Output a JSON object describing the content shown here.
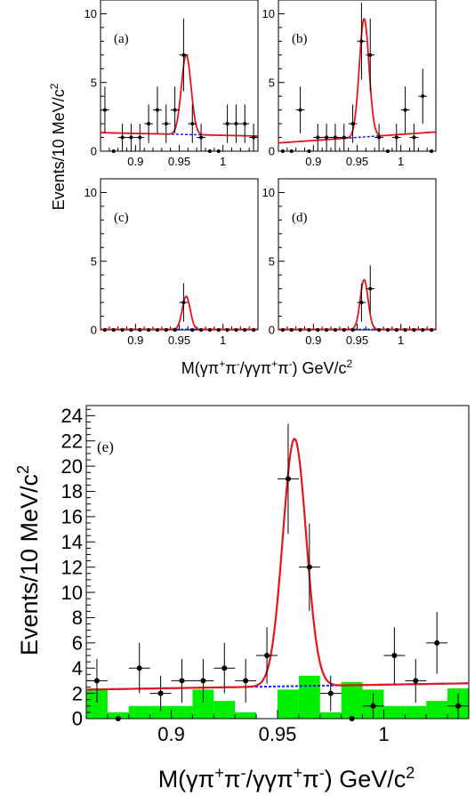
{
  "figure": {
    "top_ylabel": "Events/10 MeV/c",
    "top_ylabel_sup": "2",
    "top_xlabel_pre": "M(γπ",
    "top_xlabel_sup1": "+",
    "top_xlabel_mid1": "π",
    "top_xlabel_sup2": "-",
    "top_xlabel_mid2": "/γγπ",
    "top_xlabel_sup3": "+",
    "top_xlabel_mid3": "π",
    "top_xlabel_sup4": "-",
    "top_xlabel_post": ") GeV/c",
    "top_xlabel_sup5": "2",
    "bottom_ylabel": "Events/10 MeV/c",
    "bottom_ylabel_sup": "2",
    "bottom_xlabel_pre": "M(γπ",
    "bottom_xlabel_sup1": "+",
    "bottom_xlabel_mid1": "π",
    "bottom_xlabel_sup2": "-",
    "bottom_xlabel_mid2": "/γγπ",
    "bottom_xlabel_sup3": "+",
    "bottom_xlabel_mid3": "π",
    "bottom_xlabel_sup4": "-",
    "bottom_xlabel_post": ") GeV/c",
    "bottom_xlabel_sup5": "2"
  },
  "colors": {
    "fit": "#e8141c",
    "background": "#1a1aff",
    "histogram": "#00ee00",
    "data": "#000000"
  },
  "chart_data": [
    {
      "id": "a",
      "label": "(a)",
      "type": "scatter",
      "xlim": [
        0.86,
        1.04
      ],
      "ylim": [
        0,
        11
      ],
      "xticks": [
        0.9,
        0.95,
        1
      ],
      "xtick_labels": [
        "0.9",
        "0.95",
        "1"
      ],
      "yticks": [
        0,
        5,
        10
      ],
      "ytick_labels": [
        "0",
        "5",
        "10"
      ],
      "points": [
        {
          "x": 0.865,
          "y": 3,
          "err": 1.7
        },
        {
          "x": 0.875,
          "y": 0,
          "err": 0
        },
        {
          "x": 0.885,
          "y": 1,
          "err": 1.0
        },
        {
          "x": 0.895,
          "y": 1,
          "err": 1.0
        },
        {
          "x": 0.905,
          "y": 1,
          "err": 1.0
        },
        {
          "x": 0.915,
          "y": 2,
          "err": 1.4
        },
        {
          "x": 0.925,
          "y": 3,
          "err": 1.7
        },
        {
          "x": 0.935,
          "y": 2,
          "err": 1.4
        },
        {
          "x": 0.945,
          "y": 3,
          "err": 1.7
        },
        {
          "x": 0.955,
          "y": 7,
          "err": 2.65
        },
        {
          "x": 0.965,
          "y": 2,
          "err": 1.4
        },
        {
          "x": 0.975,
          "y": 1,
          "err": 1.0
        },
        {
          "x": 0.985,
          "y": 0,
          "err": 0
        },
        {
          "x": 0.995,
          "y": 0,
          "err": 0
        },
        {
          "x": 1.005,
          "y": 2,
          "err": 1.4
        },
        {
          "x": 1.015,
          "y": 2,
          "err": 1.4
        },
        {
          "x": 1.025,
          "y": 2,
          "err": 1.4
        },
        {
          "x": 1.035,
          "y": 1,
          "err": 1.0
        }
      ],
      "fit": {
        "peak_x": 0.958,
        "sigma": 0.0055,
        "amp": 5.8
      },
      "bkg": {
        "y0": 1.35,
        "y1": 1.1
      }
    },
    {
      "id": "b",
      "label": "(b)",
      "type": "scatter",
      "xlim": [
        0.86,
        1.04
      ],
      "ylim": [
        0,
        11
      ],
      "xticks": [
        0.9,
        0.95,
        1
      ],
      "xtick_labels": [
        "0.9",
        "0.95",
        "1"
      ],
      "yticks": [
        0,
        5,
        10
      ],
      "ytick_labels": [
        "0",
        "5",
        "10"
      ],
      "points": [
        {
          "x": 0.865,
          "y": 0,
          "err": 0
        },
        {
          "x": 0.875,
          "y": 0,
          "err": 0
        },
        {
          "x": 0.885,
          "y": 3,
          "err": 1.7
        },
        {
          "x": 0.895,
          "y": 0,
          "err": 0
        },
        {
          "x": 0.905,
          "y": 1,
          "err": 1.0
        },
        {
          "x": 0.915,
          "y": 1,
          "err": 1.0
        },
        {
          "x": 0.925,
          "y": 1,
          "err": 1.0
        },
        {
          "x": 0.935,
          "y": 1,
          "err": 1.0
        },
        {
          "x": 0.945,
          "y": 2,
          "err": 1.4
        },
        {
          "x": 0.955,
          "y": 8,
          "err": 2.8
        },
        {
          "x": 0.965,
          "y": 7,
          "err": 2.65
        },
        {
          "x": 0.975,
          "y": 1,
          "err": 1.0
        },
        {
          "x": 0.985,
          "y": 0,
          "err": 0
        },
        {
          "x": 0.995,
          "y": 1,
          "err": 1.0
        },
        {
          "x": 1.005,
          "y": 3,
          "err": 1.7
        },
        {
          "x": 1.015,
          "y": 1,
          "err": 1.0
        },
        {
          "x": 1.025,
          "y": 4,
          "err": 2.0
        },
        {
          "x": 1.035,
          "y": 0,
          "err": 0
        }
      ],
      "fit": {
        "peak_x": 0.958,
        "sigma": 0.0055,
        "amp": 8.6
      },
      "bkg": {
        "y0": 0.6,
        "y1": 1.4
      }
    },
    {
      "id": "c",
      "label": "(c)",
      "type": "scatter",
      "xlim": [
        0.86,
        1.04
      ],
      "ylim": [
        0,
        11
      ],
      "xticks": [
        0.9,
        0.95,
        1
      ],
      "xtick_labels": [
        "0.9",
        "0.95",
        "1"
      ],
      "yticks": [
        0,
        5,
        10
      ],
      "ytick_labels": [
        "0",
        "5",
        "10"
      ],
      "points": [
        {
          "x": 0.865,
          "y": 0,
          "err": 0
        },
        {
          "x": 0.875,
          "y": 0,
          "err": 0
        },
        {
          "x": 0.885,
          "y": 0,
          "err": 0
        },
        {
          "x": 0.895,
          "y": 0,
          "err": 0
        },
        {
          "x": 0.905,
          "y": 0,
          "err": 0
        },
        {
          "x": 0.915,
          "y": 0,
          "err": 0
        },
        {
          "x": 0.925,
          "y": 0,
          "err": 0
        },
        {
          "x": 0.935,
          "y": 0,
          "err": 0
        },
        {
          "x": 0.945,
          "y": 0,
          "err": 0
        },
        {
          "x": 0.955,
          "y": 2,
          "err": 1.4
        },
        {
          "x": 0.965,
          "y": 0,
          "err": 0
        },
        {
          "x": 0.975,
          "y": 0,
          "err": 0
        },
        {
          "x": 0.985,
          "y": 0,
          "err": 0
        },
        {
          "x": 0.995,
          "y": 0,
          "err": 0
        },
        {
          "x": 1.005,
          "y": 0,
          "err": 0
        },
        {
          "x": 1.015,
          "y": 0,
          "err": 0
        },
        {
          "x": 1.025,
          "y": 0,
          "err": 0
        },
        {
          "x": 1.035,
          "y": 0,
          "err": 0
        }
      ],
      "fit": {
        "peak_x": 0.958,
        "sigma": 0.0045,
        "amp": 2.4
      },
      "bkg": {
        "y0": 0.05,
        "y1": 0.05
      }
    },
    {
      "id": "d",
      "label": "(d)",
      "type": "scatter",
      "xlim": [
        0.86,
        1.04
      ],
      "ylim": [
        0,
        11
      ],
      "xticks": [
        0.9,
        0.95,
        1
      ],
      "xtick_labels": [
        "0.9",
        "0.95",
        "1"
      ],
      "yticks": [
        0,
        5,
        10
      ],
      "ytick_labels": [
        "0",
        "5",
        "10"
      ],
      "points": [
        {
          "x": 0.865,
          "y": 0,
          "err": 0
        },
        {
          "x": 0.875,
          "y": 0,
          "err": 0
        },
        {
          "x": 0.885,
          "y": 0,
          "err": 0
        },
        {
          "x": 0.895,
          "y": 0,
          "err": 0
        },
        {
          "x": 0.905,
          "y": 0,
          "err": 0
        },
        {
          "x": 0.915,
          "y": 0,
          "err": 0
        },
        {
          "x": 0.925,
          "y": 0,
          "err": 0
        },
        {
          "x": 0.935,
          "y": 0,
          "err": 0
        },
        {
          "x": 0.945,
          "y": 0,
          "err": 0
        },
        {
          "x": 0.955,
          "y": 2,
          "err": 1.4
        },
        {
          "x": 0.965,
          "y": 3,
          "err": 1.7
        },
        {
          "x": 0.975,
          "y": 0,
          "err": 0
        },
        {
          "x": 0.985,
          "y": 0,
          "err": 0
        },
        {
          "x": 0.995,
          "y": 0,
          "err": 0
        },
        {
          "x": 1.005,
          "y": 0,
          "err": 0
        },
        {
          "x": 1.015,
          "y": 0,
          "err": 0
        },
        {
          "x": 1.025,
          "y": 0,
          "err": 0
        },
        {
          "x": 1.035,
          "y": 0,
          "err": 0
        }
      ],
      "fit": {
        "peak_x": 0.958,
        "sigma": 0.0045,
        "amp": 3.6
      },
      "bkg": {
        "y0": 0.05,
        "y1": 0.05
      }
    },
    {
      "id": "e",
      "label": "(e)",
      "type": "scatter",
      "xlim": [
        0.86,
        1.04
      ],
      "ylim": [
        0,
        24.8
      ],
      "xticks": [
        0.9,
        0.95,
        1
      ],
      "xtick_labels": [
        "0.9",
        "0.95",
        "1"
      ],
      "yticks": [
        0,
        2,
        4,
        6,
        8,
        10,
        12,
        14,
        16,
        18,
        20,
        22,
        24
      ],
      "ytick_labels": [
        "0",
        "2",
        "4",
        "6",
        "8",
        "10",
        "12",
        "14",
        "16",
        "18",
        "20",
        "22",
        "24"
      ],
      "points": [
        {
          "x": 0.865,
          "y": 3,
          "err": 1.73
        },
        {
          "x": 0.875,
          "y": 0,
          "err": 0
        },
        {
          "x": 0.885,
          "y": 4,
          "err": 2.0
        },
        {
          "x": 0.895,
          "y": 2,
          "err": 1.41
        },
        {
          "x": 0.905,
          "y": 3,
          "err": 1.73
        },
        {
          "x": 0.915,
          "y": 3,
          "err": 1.73
        },
        {
          "x": 0.925,
          "y": 4,
          "err": 2.0
        },
        {
          "x": 0.935,
          "y": 3,
          "err": 1.73
        },
        {
          "x": 0.945,
          "y": 5,
          "err": 2.24
        },
        {
          "x": 0.955,
          "y": 19,
          "err": 4.36
        },
        {
          "x": 0.965,
          "y": 12,
          "err": 3.46
        },
        {
          "x": 0.975,
          "y": 2,
          "err": 1.41
        },
        {
          "x": 0.985,
          "y": 0,
          "err": 0
        },
        {
          "x": 0.995,
          "y": 1,
          "err": 1.0
        },
        {
          "x": 1.005,
          "y": 5,
          "err": 2.24
        },
        {
          "x": 1.015,
          "y": 3,
          "err": 1.73
        },
        {
          "x": 1.025,
          "y": 6,
          "err": 2.45
        },
        {
          "x": 1.035,
          "y": 1,
          "err": 1.0
        }
      ],
      "histogram": [
        {
          "x0": 0.86,
          "x1": 0.87,
          "y": 2.3
        },
        {
          "x0": 0.87,
          "x1": 0.88,
          "y": 0.5
        },
        {
          "x0": 0.88,
          "x1": 0.89,
          "y": 1.0
        },
        {
          "x0": 0.89,
          "x1": 0.9,
          "y": 1.0
        },
        {
          "x0": 0.9,
          "x1": 0.91,
          "y": 1.0
        },
        {
          "x0": 0.91,
          "x1": 0.92,
          "y": 2.3
        },
        {
          "x0": 0.92,
          "x1": 0.93,
          "y": 1.4
        },
        {
          "x0": 0.93,
          "x1": 0.94,
          "y": 0.5
        },
        {
          "x0": 0.94,
          "x1": 0.95,
          "y": 0.0
        },
        {
          "x0": 0.95,
          "x1": 0.96,
          "y": 2.3
        },
        {
          "x0": 0.96,
          "x1": 0.97,
          "y": 3.4
        },
        {
          "x0": 0.97,
          "x1": 0.98,
          "y": 0.5
        },
        {
          "x0": 0.98,
          "x1": 0.99,
          "y": 2.9
        },
        {
          "x0": 0.99,
          "x1": 1.0,
          "y": 2.3
        },
        {
          "x0": 1.0,
          "x1": 1.01,
          "y": 1.0
        },
        {
          "x0": 1.01,
          "x1": 1.02,
          "y": 1.0
        },
        {
          "x0": 1.02,
          "x1": 1.03,
          "y": 1.4
        },
        {
          "x0": 1.03,
          "x1": 1.04,
          "y": 2.4
        }
      ],
      "fit": {
        "peak_x": 0.958,
        "sigma": 0.0055,
        "amp": 19.6
      },
      "bkg": {
        "y0": 2.3,
        "y1": 2.8
      }
    }
  ]
}
